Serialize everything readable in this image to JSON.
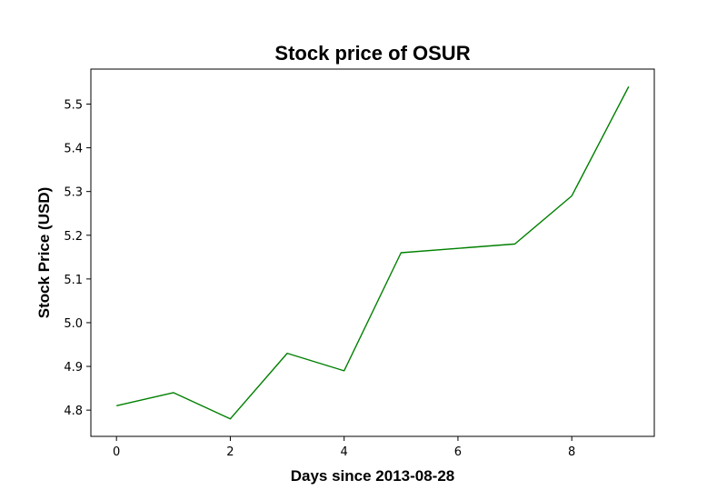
{
  "chart_data": {
    "type": "line",
    "title": "Stock price of OSUR",
    "xlabel": "Days since 2013-08-28",
    "ylabel": "Stock Price (USD)",
    "xlim": [
      -0.45,
      9.45
    ],
    "ylim": [
      4.74,
      5.58
    ],
    "x_ticks": [
      0,
      2,
      4,
      6,
      8
    ],
    "y_ticks": [
      4.8,
      4.9,
      5.0,
      5.1,
      5.2,
      5.3,
      5.4,
      5.5
    ],
    "grid": false,
    "series": [
      {
        "color": "#008000",
        "x": [
          0,
          1,
          2,
          3,
          4,
          5,
          6,
          7,
          8,
          9
        ],
        "y": [
          4.81,
          4.84,
          4.78,
          4.93,
          4.89,
          5.16,
          5.17,
          5.18,
          5.29,
          5.54
        ]
      }
    ]
  }
}
